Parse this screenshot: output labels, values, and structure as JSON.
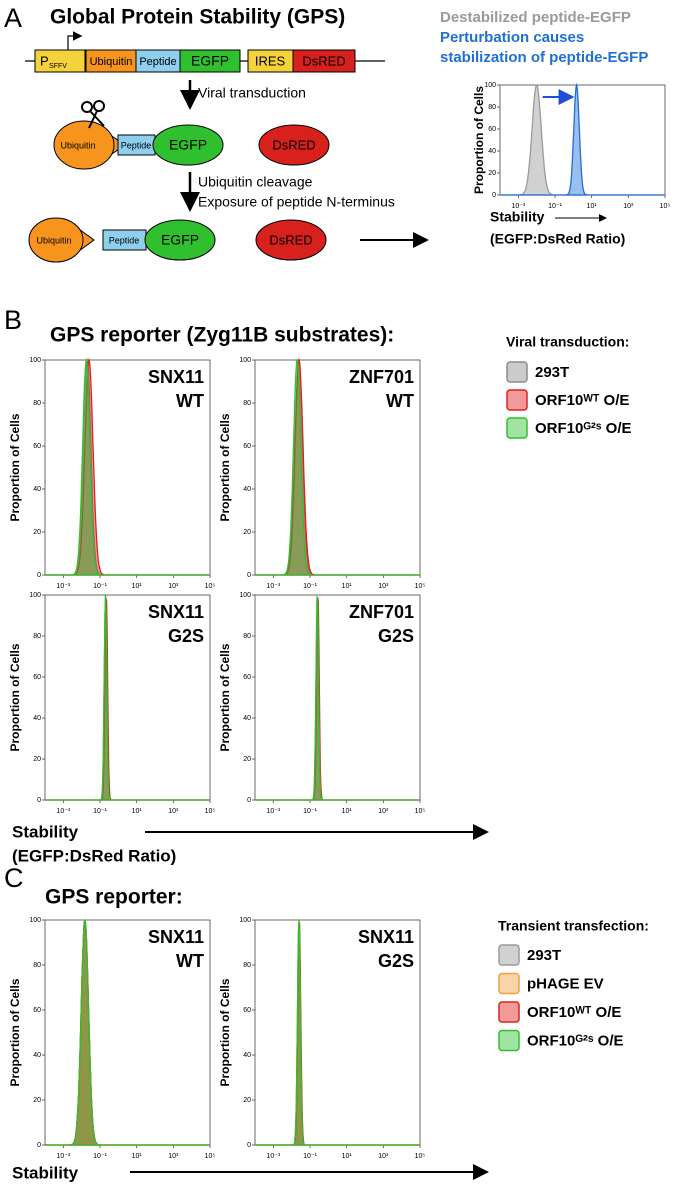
{
  "figure": {
    "a": {
      "letter": "A",
      "title": "Global Protein Stability (GPS)",
      "promoter": "P",
      "promoter_sub": "SFFV",
      "ubiquitin": "Ubiquitin",
      "peptide": "Peptide",
      "egfp": "EGFP",
      "ires": "IRES",
      "dsred": "DsRED",
      "step1": "Viral transduction",
      "step2": [
        "Ubiquitin cleavage",
        "Exposure of peptide N-terminus"
      ]
    },
    "b": {
      "letter": "B",
      "title": "GPS reporter (Zyg11B substrates):",
      "legend_title": "Viral transduction:",
      "xlabel": "Stability",
      "xlabel_sub": "(EGFP:DsRed Ratio)"
    },
    "c": {
      "letter": "C",
      "title": "GPS reporter:",
      "legend_title": "Transient transfection:",
      "xlabel": "Stability"
    }
  },
  "chart_data": [
    {
      "type": "density",
      "ylabel": "Proportion of Cells",
      "xlabel": "Stability",
      "xlabel_sub": "(EGFP:DsRed Ratio)",
      "log_x": true,
      "xlim": [
        0.0001,
        100000
      ],
      "xticks": [
        {
          "value": 0.001,
          "label": "10⁻³"
        },
        {
          "value": 0.1,
          "label": "10⁻¹"
        },
        {
          "value": 10,
          "label": "10¹"
        },
        {
          "value": 1000,
          "label": "10³"
        },
        {
          "value": 100000,
          "label": "10⁵"
        }
      ],
      "ylim": [
        0,
        100
      ],
      "yticks": [
        0,
        20,
        40,
        60,
        80,
        100
      ],
      "series": [
        {
          "name": "Destabilized peptide-EGFP",
          "color": "#9a9a9a",
          "peak": 0.01,
          "width": 0.25
        },
        {
          "name": "Perturbation causes stabilization of peptide-EGFP",
          "color": "#1f6fd6",
          "peak": 1.5,
          "width": 0.15
        }
      ]
    },
    {
      "type": "density",
      "title": "SNX11",
      "subtitle": "WT",
      "ylabel": "Proportion of Cells",
      "log_x": true,
      "xlim": [
        0.0001,
        100000
      ],
      "xticks": [
        {
          "value": 0.001,
          "label": "10⁻³"
        },
        {
          "value": 0.1,
          "label": "10⁻¹"
        },
        {
          "value": 10,
          "label": "10¹"
        },
        {
          "value": 1000,
          "label": "10³"
        },
        {
          "value": 100000,
          "label": "10⁵"
        }
      ],
      "ylim": [
        0,
        100
      ],
      "yticks": [
        0,
        20,
        40,
        60,
        80,
        100
      ],
      "series": [
        {
          "name": "293T",
          "color": "#8c8c8c",
          "peak": 0.02,
          "width": 0.2
        },
        {
          "name": "ORF10ᵂᵀ O/E",
          "color": "#e02020",
          "peak": 0.025,
          "width": 0.22
        },
        {
          "name": "ORF10ᴳ²ˢ O/E",
          "color": "#2ec02e",
          "peak": 0.018,
          "width": 0.2
        }
      ]
    },
    {
      "type": "density",
      "title": "ZNF701",
      "subtitle": "WT",
      "ylabel": "Proportion of Cells",
      "log_x": true,
      "xlim": [
        0.0001,
        100000
      ],
      "xticks": [
        {
          "value": 0.001,
          "label": "10⁻³"
        },
        {
          "value": 0.1,
          "label": "10⁻¹"
        },
        {
          "value": 10,
          "label": "10¹"
        },
        {
          "value": 1000,
          "label": "10³"
        },
        {
          "value": 100000,
          "label": "10⁵"
        }
      ],
      "ylim": [
        0,
        100
      ],
      "yticks": [
        0,
        20,
        40,
        60,
        80,
        100
      ],
      "series": [
        {
          "name": "293T",
          "color": "#8c8c8c",
          "peak": 0.025,
          "width": 0.2
        },
        {
          "name": "ORF10ᵂᵀ O/E",
          "color": "#e02020",
          "peak": 0.025,
          "width": 0.22
        },
        {
          "name": "ORF10ᴳ²ˢ O/E",
          "color": "#2ec02e",
          "peak": 0.02,
          "width": 0.2
        }
      ]
    },
    {
      "type": "density",
      "title": "SNX11",
      "subtitle": "G2S",
      "ylabel": "Proportion of Cells",
      "log_x": true,
      "xlim": [
        0.0001,
        100000
      ],
      "xticks": [
        {
          "value": 0.001,
          "label": "10⁻³"
        },
        {
          "value": 0.1,
          "label": "10⁻¹"
        },
        {
          "value": 10,
          "label": "10¹"
        },
        {
          "value": 1000,
          "label": "10³"
        },
        {
          "value": 100000,
          "label": "10⁵"
        }
      ],
      "ylim": [
        0,
        100
      ],
      "yticks": [
        0,
        20,
        40,
        60,
        80,
        100
      ],
      "series": [
        {
          "name": "293T",
          "color": "#8c8c8c",
          "peak": 0.2,
          "width": 0.07
        },
        {
          "name": "ORF10ᵂᵀ O/E",
          "color": "#e02020",
          "peak": 0.22,
          "width": 0.07
        },
        {
          "name": "ORF10ᴳ²ˢ O/E",
          "color": "#2ec02e",
          "peak": 0.2,
          "width": 0.07
        }
      ]
    },
    {
      "type": "density",
      "title": "ZNF701",
      "subtitle": "G2S",
      "ylabel": "Proportion of Cells",
      "log_x": true,
      "xlim": [
        0.0001,
        100000
      ],
      "xticks": [
        {
          "value": 0.001,
          "label": "10⁻³"
        },
        {
          "value": 0.1,
          "label": "10⁻¹"
        },
        {
          "value": 10,
          "label": "10¹"
        },
        {
          "value": 1000,
          "label": "10³"
        },
        {
          "value": 100000,
          "label": "10⁵"
        }
      ],
      "ylim": [
        0,
        100
      ],
      "yticks": [
        0,
        20,
        40,
        60,
        80,
        100
      ],
      "series": [
        {
          "name": "293T",
          "color": "#8c8c8c",
          "peak": 0.25,
          "width": 0.07
        },
        {
          "name": "ORF10ᵂᵀ O/E",
          "color": "#e02020",
          "peak": 0.27,
          "width": 0.07
        },
        {
          "name": "ORF10ᴳ²ˢ O/E",
          "color": "#2ec02e",
          "peak": 0.25,
          "width": 0.07
        }
      ]
    },
    {
      "type": "density",
      "title": "SNX11",
      "subtitle": "WT",
      "ylabel": "Proportion of Cells",
      "log_x": true,
      "xlim": [
        0.0001,
        100000
      ],
      "xticks": [
        {
          "value": 0.001,
          "label": "10⁻³"
        },
        {
          "value": 0.1,
          "label": "10⁻¹"
        },
        {
          "value": 10,
          "label": "10¹"
        },
        {
          "value": 1000,
          "label": "10³"
        },
        {
          "value": 100000,
          "label": "10⁵"
        }
      ],
      "ylim": [
        0,
        100
      ],
      "yticks": [
        0,
        20,
        40,
        60,
        80,
        100
      ],
      "series": [
        {
          "name": "293T",
          "color": "#9a9a9a",
          "peak": 0.015,
          "width": 0.2
        },
        {
          "name": "pHAGE EV",
          "color": "#f0a040",
          "peak": 0.015,
          "width": 0.2
        },
        {
          "name": "ORF10ᵂᵀ O/E",
          "color": "#e02020",
          "peak": 0.015,
          "width": 0.2
        },
        {
          "name": "ORF10ᴳ²ˢ O/E",
          "color": "#2ec02e",
          "peak": 0.015,
          "width": 0.2
        }
      ]
    },
    {
      "type": "density",
      "title": "SNX11",
      "subtitle": "G2S",
      "ylabel": "Proportion of Cells",
      "log_x": true,
      "xlim": [
        0.0001,
        100000
      ],
      "xticks": [
        {
          "value": 0.001,
          "label": "10⁻³"
        },
        {
          "value": 0.1,
          "label": "10⁻¹"
        },
        {
          "value": 10,
          "label": "10¹"
        },
        {
          "value": 1000,
          "label": "10³"
        },
        {
          "value": 100000,
          "label": "10⁵"
        }
      ],
      "ylim": [
        0,
        100
      ],
      "yticks": [
        0,
        20,
        40,
        60,
        80,
        100
      ],
      "series": [
        {
          "name": "293T",
          "color": "#9a9a9a",
          "peak": 0.025,
          "width": 0.08
        },
        {
          "name": "pHAGE EV",
          "color": "#f0a040",
          "peak": 0.025,
          "width": 0.08
        },
        {
          "name": "ORF10ᵂᵀ O/E",
          "color": "#e02020",
          "peak": 0.026,
          "width": 0.08
        },
        {
          "name": "ORF10ᴳ²ˢ O/E",
          "color": "#2ec02e",
          "peak": 0.025,
          "width": 0.08
        }
      ]
    }
  ]
}
